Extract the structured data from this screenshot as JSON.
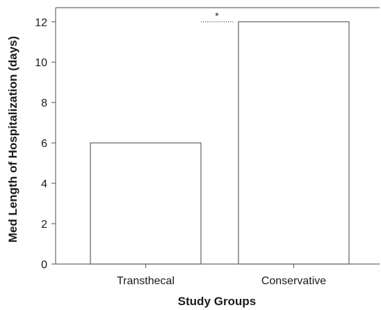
{
  "chart_data": {
    "type": "bar",
    "categories": [
      "Transthecal",
      "Conservative"
    ],
    "values": [
      6,
      12
    ],
    "xlabel": "Study Groups",
    "ylabel": "Med Length of Hospitalization (days)",
    "ylim": [
      0,
      12.7
    ],
    "yticks": [
      0,
      2,
      4,
      6,
      8,
      10,
      12
    ],
    "grid": false,
    "legend": "none",
    "significance_marker": "*",
    "colors": {
      "bar_fill": "#ffffff",
      "bar_stroke": "#6b6b6b",
      "axis": "#6b6b6b",
      "text": "#1a1a1a"
    }
  }
}
